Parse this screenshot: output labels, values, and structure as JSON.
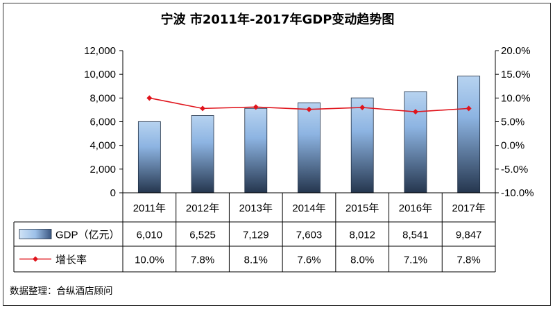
{
  "chart_data": {
    "type": "bar+line",
    "title": "宁波 市2011年-2017年GDP变动趋势图",
    "categories": [
      "2011年",
      "2012年",
      "2013年",
      "2014年",
      "2015年",
      "2016年",
      "2017年"
    ],
    "series": [
      {
        "name": "GDP（亿元）",
        "type": "bar",
        "axis": "left",
        "values": [
          6010,
          6525,
          7129,
          7603,
          8012,
          8541,
          9847
        ],
        "labels": [
          "6,010",
          "6,525",
          "7,129",
          "7,603",
          "8,012",
          "8,541",
          "9,847"
        ]
      },
      {
        "name": "增长率",
        "type": "line",
        "axis": "right",
        "values": [
          10.0,
          7.8,
          8.1,
          7.6,
          8.0,
          7.1,
          7.8
        ],
        "labels": [
          "10.0%",
          "7.8%",
          "8.1%",
          "7.6%",
          "8.0%",
          "7.1%",
          "7.8%"
        ]
      }
    ],
    "y_left": {
      "min": 0,
      "max": 12000,
      "ticks": [
        0,
        2000,
        4000,
        6000,
        8000,
        10000,
        12000
      ],
      "tick_labels": [
        "0",
        "2,000",
        "4,000",
        "6,000",
        "8,000",
        "10,000",
        "12,000"
      ]
    },
    "y_right": {
      "min": -10,
      "max": 20,
      "ticks": [
        -10,
        -5,
        0,
        5,
        10,
        15,
        20
      ],
      "tick_labels": [
        "-10.0%",
        "-5.0%",
        "0.0%",
        "5.0%",
        "10.0%",
        "15.0%",
        "20.0%"
      ]
    },
    "grid": false,
    "legend": "data-table-left"
  },
  "source_note": "数据整理：合纵酒店顾问",
  "colors": {
    "bar_top": "#b7d3f0",
    "bar_mid": "#8db4e2",
    "bar_bottom": "#25364e",
    "line": "#e0141c",
    "axis": "#000000"
  }
}
